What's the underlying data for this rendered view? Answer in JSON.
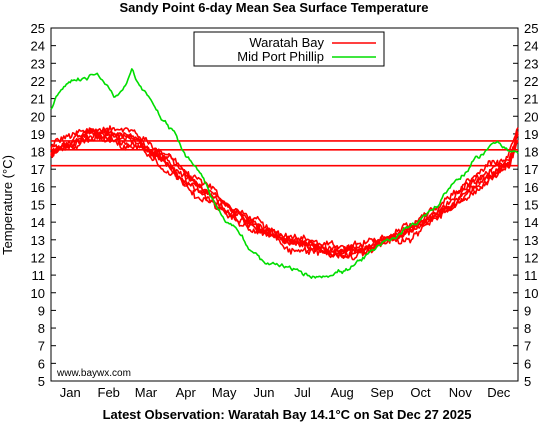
{
  "chart_data": {
    "type": "line",
    "title": "Sandy Point 6-day Mean Sea Surface Temperature",
    "ylabel": "Temperature (°C)",
    "footer": "Latest Observation: Waratah Bay 14.1°C on Sat Dec 27 2025",
    "watermark": "www.baywx.com",
    "ylim": [
      5,
      25
    ],
    "yticks": [
      5,
      6,
      7,
      8,
      9,
      10,
      11,
      12,
      13,
      14,
      15,
      16,
      17,
      18,
      19,
      20,
      21,
      22,
      23,
      24,
      25
    ],
    "x_unit": "day of year",
    "xlim": [
      1,
      365
    ],
    "month_labels": [
      "Jan",
      "Feb",
      "Mar",
      "Apr",
      "May",
      "Jun",
      "Jul",
      "Aug",
      "Sep",
      "Oct",
      "Nov",
      "Dec"
    ],
    "month_label_days": [
      16,
      46,
      75,
      106,
      136,
      167,
      197,
      228,
      259,
      289,
      320,
      350
    ],
    "grid": false,
    "legend_position": "top-center",
    "reference_lines": [
      18.6,
      18.1,
      17.2
    ],
    "reference_line_color": "#ff0000",
    "series": [
      {
        "name": "Waratah Bay",
        "color": "#ff0000",
        "x": [
          1,
          8,
          15,
          22,
          29,
          36,
          43,
          50,
          57,
          64,
          71,
          78,
          85,
          92,
          99,
          106,
          113,
          120,
          127,
          134,
          141,
          148,
          155,
          162,
          169,
          176,
          183,
          190,
          197,
          204,
          211,
          218,
          225,
          232,
          239,
          246,
          253,
          260,
          267,
          274,
          281,
          288,
          295,
          302,
          309,
          316,
          323,
          330,
          337,
          344,
          351,
          358,
          365
        ],
        "y": [
          18.0,
          18.4,
          18.6,
          18.9,
          19.2,
          19.3,
          19.1,
          19.0,
          18.8,
          18.7,
          18.5,
          18.2,
          17.9,
          17.5,
          17.0,
          16.6,
          16.2,
          15.8,
          15.4,
          15.0,
          14.6,
          14.3,
          14.0,
          13.8,
          13.5,
          13.3,
          13.0,
          12.9,
          12.8,
          12.7,
          12.6,
          12.5,
          12.4,
          12.4,
          12.5,
          12.6,
          12.8,
          13.0,
          13.2,
          13.4,
          13.6,
          13.9,
          14.2,
          14.5,
          14.9,
          15.3,
          15.7,
          16.1,
          16.5,
          16.9,
          17.2,
          17.5,
          19.0
        ]
      },
      {
        "name": "Mid Port Phillip",
        "color": "#00dd00",
        "x": [
          1,
          8,
          15,
          22,
          29,
          36,
          43,
          50,
          57,
          64,
          71,
          78,
          85,
          92,
          99,
          106,
          113,
          120,
          127,
          134,
          141,
          148,
          155,
          162,
          169,
          176,
          183,
          190,
          197,
          204,
          211,
          218,
          225,
          232,
          239,
          246,
          253,
          260,
          267,
          274,
          281,
          288,
          295,
          302,
          309,
          316,
          323,
          330,
          337,
          344,
          351,
          358,
          365
        ],
        "y": [
          20.5,
          21.5,
          22.0,
          22.0,
          22.2,
          22.5,
          22.0,
          21.4,
          21.5,
          22.5,
          21.6,
          20.9,
          20.2,
          19.4,
          18.9,
          17.9,
          17.3,
          16.6,
          15.6,
          14.7,
          14.1,
          13.6,
          12.6,
          12.0,
          11.5,
          11.4,
          11.3,
          11.2,
          11.0,
          10.9,
          11.1,
          11.3,
          11.4,
          11.5,
          11.7,
          12.0,
          12.3,
          12.6,
          13.0,
          13.4,
          14.0,
          14.3,
          14.8,
          15.1,
          15.9,
          16.5,
          16.9,
          17.4,
          17.9,
          18.4,
          18.7,
          18.3,
          18.0
        ]
      }
    ],
    "series_spread": 0.9
  }
}
